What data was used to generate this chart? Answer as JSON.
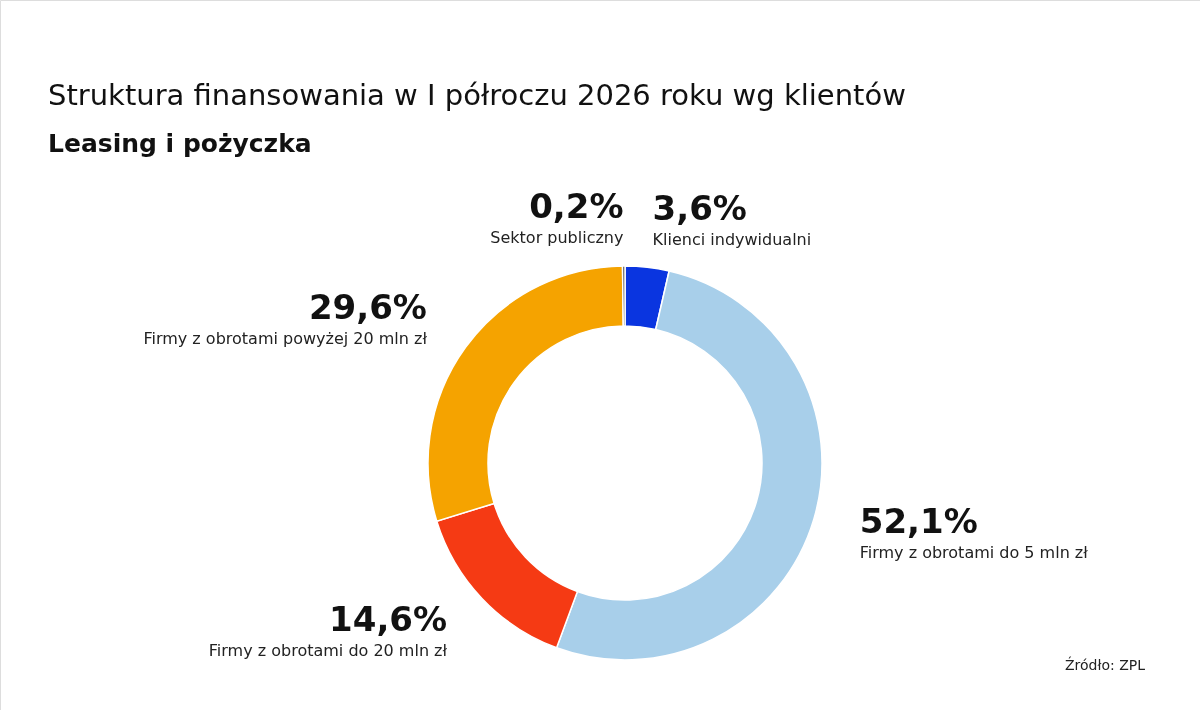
{
  "chart_data": {
    "type": "donut",
    "title": "Struktura finansowania w I półroczu 2026 roku wg klientów",
    "subtitle": "Leasing i pożyczka",
    "categories": [
      "Klienci indywidualni",
      "Firmy z obrotami do 5 mln zł",
      "Firmy z obrotami do 20 mln zł",
      "Firmy z obrotami powyżej 20 mln zł",
      "Sektor publiczny"
    ],
    "values": [
      3.6,
      52.1,
      14.6,
      29.6,
      0.2
    ],
    "colors": [
      "#0a35e0",
      "#a8cfea",
      "#f53a14",
      "#f5a300",
      "#3a3a3a"
    ],
    "value_labels": [
      "3,6%",
      "52,1%",
      "14,6%",
      "29,6%",
      "0,2%"
    ],
    "annotations": [
      "Źródło: ZPL"
    ]
  }
}
